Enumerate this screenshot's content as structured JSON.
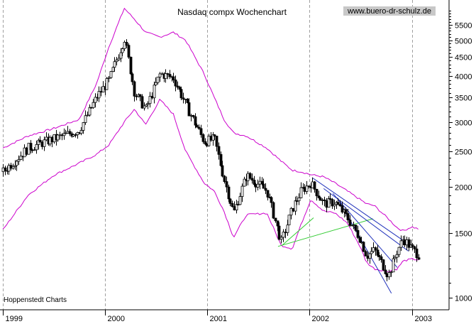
{
  "chart_data": {
    "type": "candlestick",
    "title": "Nasdaq compx Wochenchart",
    "watermark": "www.buero-dr-schulz.de",
    "source": "Hoppenstedt Charts",
    "scale": "log",
    "ylim": [
      980,
      6200
    ],
    "y_ticks": [
      1000,
      1500,
      2000,
      2500,
      3000,
      3500,
      4000,
      4500,
      5000,
      5500
    ],
    "x_ticks": [
      "1999",
      "2000",
      "2001",
      "2002",
      "2003"
    ],
    "x_range": [
      "1999-01-01",
      "2003-01-25"
    ],
    "grid": {
      "vertical": true,
      "horizontal": false
    },
    "colors": {
      "price": "#000000",
      "bollinger": "#cc00cc",
      "trend_green": "#33cc33",
      "trend_blue": "#2233bb",
      "grid": "#a0a0a0",
      "watermark_bg": "#c8c8c8"
    },
    "series": [
      {
        "name": "close",
        "kind": "price",
        "x": [
          "1999-01-01",
          "1999-04-01",
          "1999-07-01",
          "1999-10-01",
          "1999-12-01",
          "2000-01-15",
          "2000-03-10",
          "2000-04-15",
          "2000-05-25",
          "2000-07-15",
          "2000-09-01",
          "2000-10-15",
          "2000-12-20",
          "2001-01-25",
          "2001-03-01",
          "2001-04-04",
          "2001-05-20",
          "2001-08-01",
          "2001-09-21",
          "2001-10-31",
          "2001-12-01",
          "2002-01-05",
          "2002-02-20",
          "2002-04-01",
          "2002-05-15",
          "2002-06-30",
          "2002-07-23",
          "2002-08-20",
          "2002-10-09",
          "2002-11-10",
          "2002-12-01",
          "2002-12-31",
          "2003-01-24"
        ],
        "y": [
          2200,
          2550,
          2700,
          2850,
          3500,
          3900,
          5050,
          3600,
          3250,
          4050,
          3950,
          3350,
          2650,
          2700,
          2100,
          1700,
          2150,
          1950,
          1420,
          1750,
          1950,
          2050,
          1800,
          1820,
          1650,
          1450,
          1300,
          1350,
          1150,
          1350,
          1450,
          1360,
          1310
        ]
      },
      {
        "name": "upper_band",
        "kind": "indicator",
        "x": [
          "1999-01-01",
          "1999-04-01",
          "1999-07-01",
          "1999-10-01",
          "1999-12-01",
          "2000-01-15",
          "2000-03-10",
          "2000-04-15",
          "2000-05-25",
          "2000-07-15",
          "2000-09-01",
          "2000-10-15",
          "2000-12-20",
          "2001-01-25",
          "2001-03-01",
          "2001-04-04",
          "2001-05-20",
          "2001-08-01",
          "2001-09-21",
          "2001-10-31",
          "2001-12-01",
          "2002-01-05",
          "2002-02-20",
          "2002-04-01",
          "2002-05-15",
          "2002-06-30",
          "2002-07-23",
          "2002-08-20",
          "2002-10-09",
          "2002-11-10",
          "2002-12-01",
          "2002-12-31",
          "2003-01-24"
        ],
        "y": [
          2550,
          2750,
          2880,
          3050,
          3800,
          4800,
          6100,
          5700,
          5250,
          5100,
          5250,
          5000,
          4050,
          3500,
          3050,
          2800,
          2750,
          2550,
          2350,
          2220,
          2200,
          2160,
          2130,
          2050,
          1950,
          1850,
          1800,
          1780,
          1640,
          1550,
          1520,
          1560,
          1540
        ]
      },
      {
        "name": "lower_band",
        "kind": "indicator",
        "x": [
          "1999-01-01",
          "1999-04-01",
          "1999-07-01",
          "1999-10-01",
          "1999-12-01",
          "2000-01-15",
          "2000-03-10",
          "2000-04-15",
          "2000-05-25",
          "2000-07-15",
          "2000-09-01",
          "2000-10-15",
          "2000-12-20",
          "2001-01-25",
          "2001-03-01",
          "2001-04-04",
          "2001-05-20",
          "2001-08-01",
          "2001-09-21",
          "2001-10-31",
          "2001-12-01",
          "2002-01-05",
          "2002-02-20",
          "2002-04-01",
          "2002-05-15",
          "2002-06-30",
          "2002-07-23",
          "2002-08-20",
          "2002-10-09",
          "2002-11-10",
          "2002-12-01",
          "2002-12-31",
          "2003-01-24"
        ],
        "y": [
          1530,
          1900,
          2150,
          2320,
          2450,
          2600,
          3000,
          3250,
          2950,
          3450,
          3150,
          2500,
          2050,
          1950,
          1720,
          1460,
          1680,
          1700,
          1390,
          1360,
          1580,
          1850,
          1720,
          1700,
          1600,
          1380,
          1250,
          1200,
          1180,
          1200,
          1260,
          1275,
          1270
        ]
      }
    ],
    "trendlines": [
      {
        "color": "green",
        "from": [
          "2001-09-10",
          1380
        ],
        "to": [
          "2002-08-15",
          1640
        ]
      },
      {
        "color": "green",
        "from": [
          "2001-09-25",
          1390
        ],
        "to": [
          "2002-01-15",
          1650
        ]
      },
      {
        "color": "blue",
        "from": [
          "2002-01-10",
          2120
        ],
        "to": [
          "2002-12-20",
          1400
        ]
      },
      {
        "color": "blue",
        "from": [
          "2002-02-20",
          1980
        ],
        "to": [
          "2002-12-20",
          1340
        ]
      },
      {
        "color": "blue",
        "from": [
          "2002-03-25",
          1920
        ],
        "to": [
          "2002-11-10",
          1210
        ]
      },
      {
        "color": "blue",
        "from": [
          "2002-04-10",
          1870
        ],
        "to": [
          "2002-10-20",
          1030
        ]
      }
    ]
  }
}
